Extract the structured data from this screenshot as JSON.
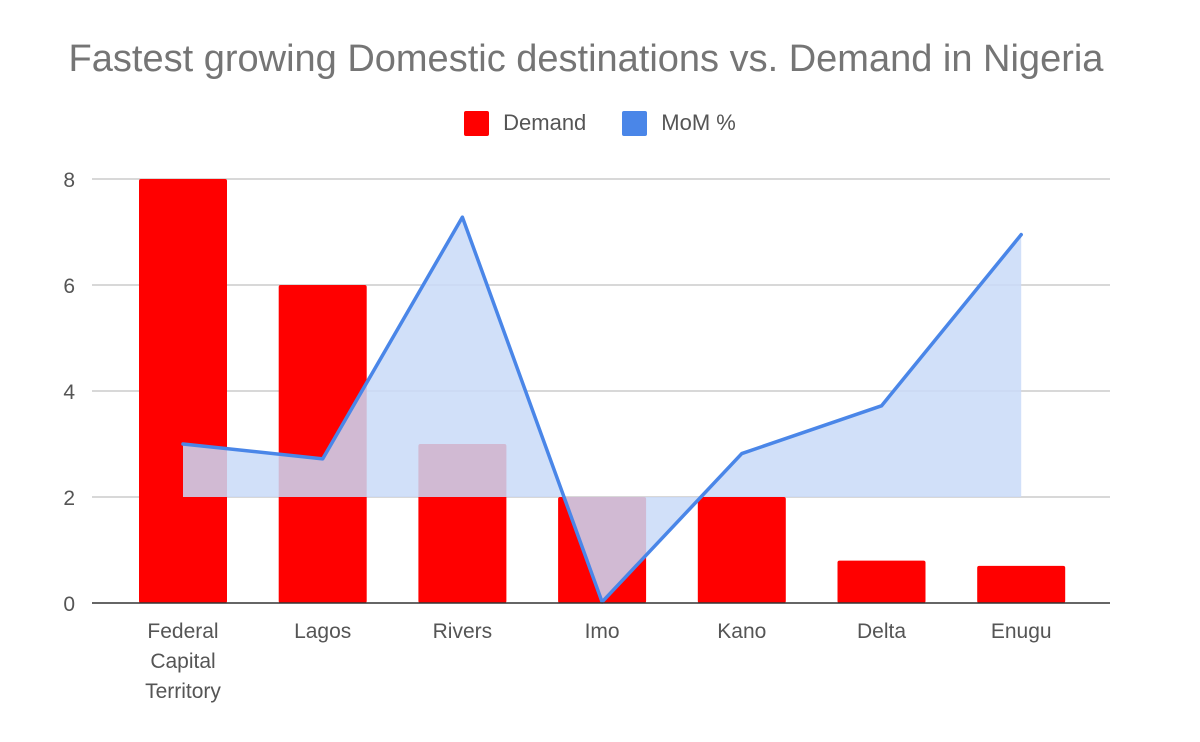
{
  "chart_data": {
    "type": "bar",
    "title": "Fastest growing Domestic destinations vs. Demand in Nigeria",
    "categories": [
      "Federal Capital Territory",
      "Lagos",
      "Rivers",
      "Imo",
      "Kano",
      "Delta",
      "Enugu"
    ],
    "category_lines": [
      [
        "Federal",
        "Capital",
        "Territory"
      ],
      [
        "Lagos"
      ],
      [
        "Rivers"
      ],
      [
        "Imo"
      ],
      [
        "Kano"
      ],
      [
        "Delta"
      ],
      [
        "Enugu"
      ]
    ],
    "series": [
      {
        "name": "Demand",
        "type": "bar",
        "color": "#ff0000",
        "values": [
          8,
          6,
          3,
          2,
          2,
          0.8,
          0.7
        ]
      },
      {
        "name": "MoM %",
        "type": "line-area",
        "color": "#4a86e8",
        "fill": "#c9daf8",
        "axis_baseline": 2,
        "values": [
          3.0,
          2.72,
          7.28,
          0.02,
          2.82,
          3.72,
          6.95
        ]
      }
    ],
    "y_axis": {
      "min": 0,
      "max": 8,
      "ticks": [
        "0",
        "2",
        "4",
        "6",
        "8"
      ]
    },
    "legend": {
      "position": "top",
      "items": [
        "Demand",
        "MoM %"
      ]
    },
    "grid": true
  }
}
